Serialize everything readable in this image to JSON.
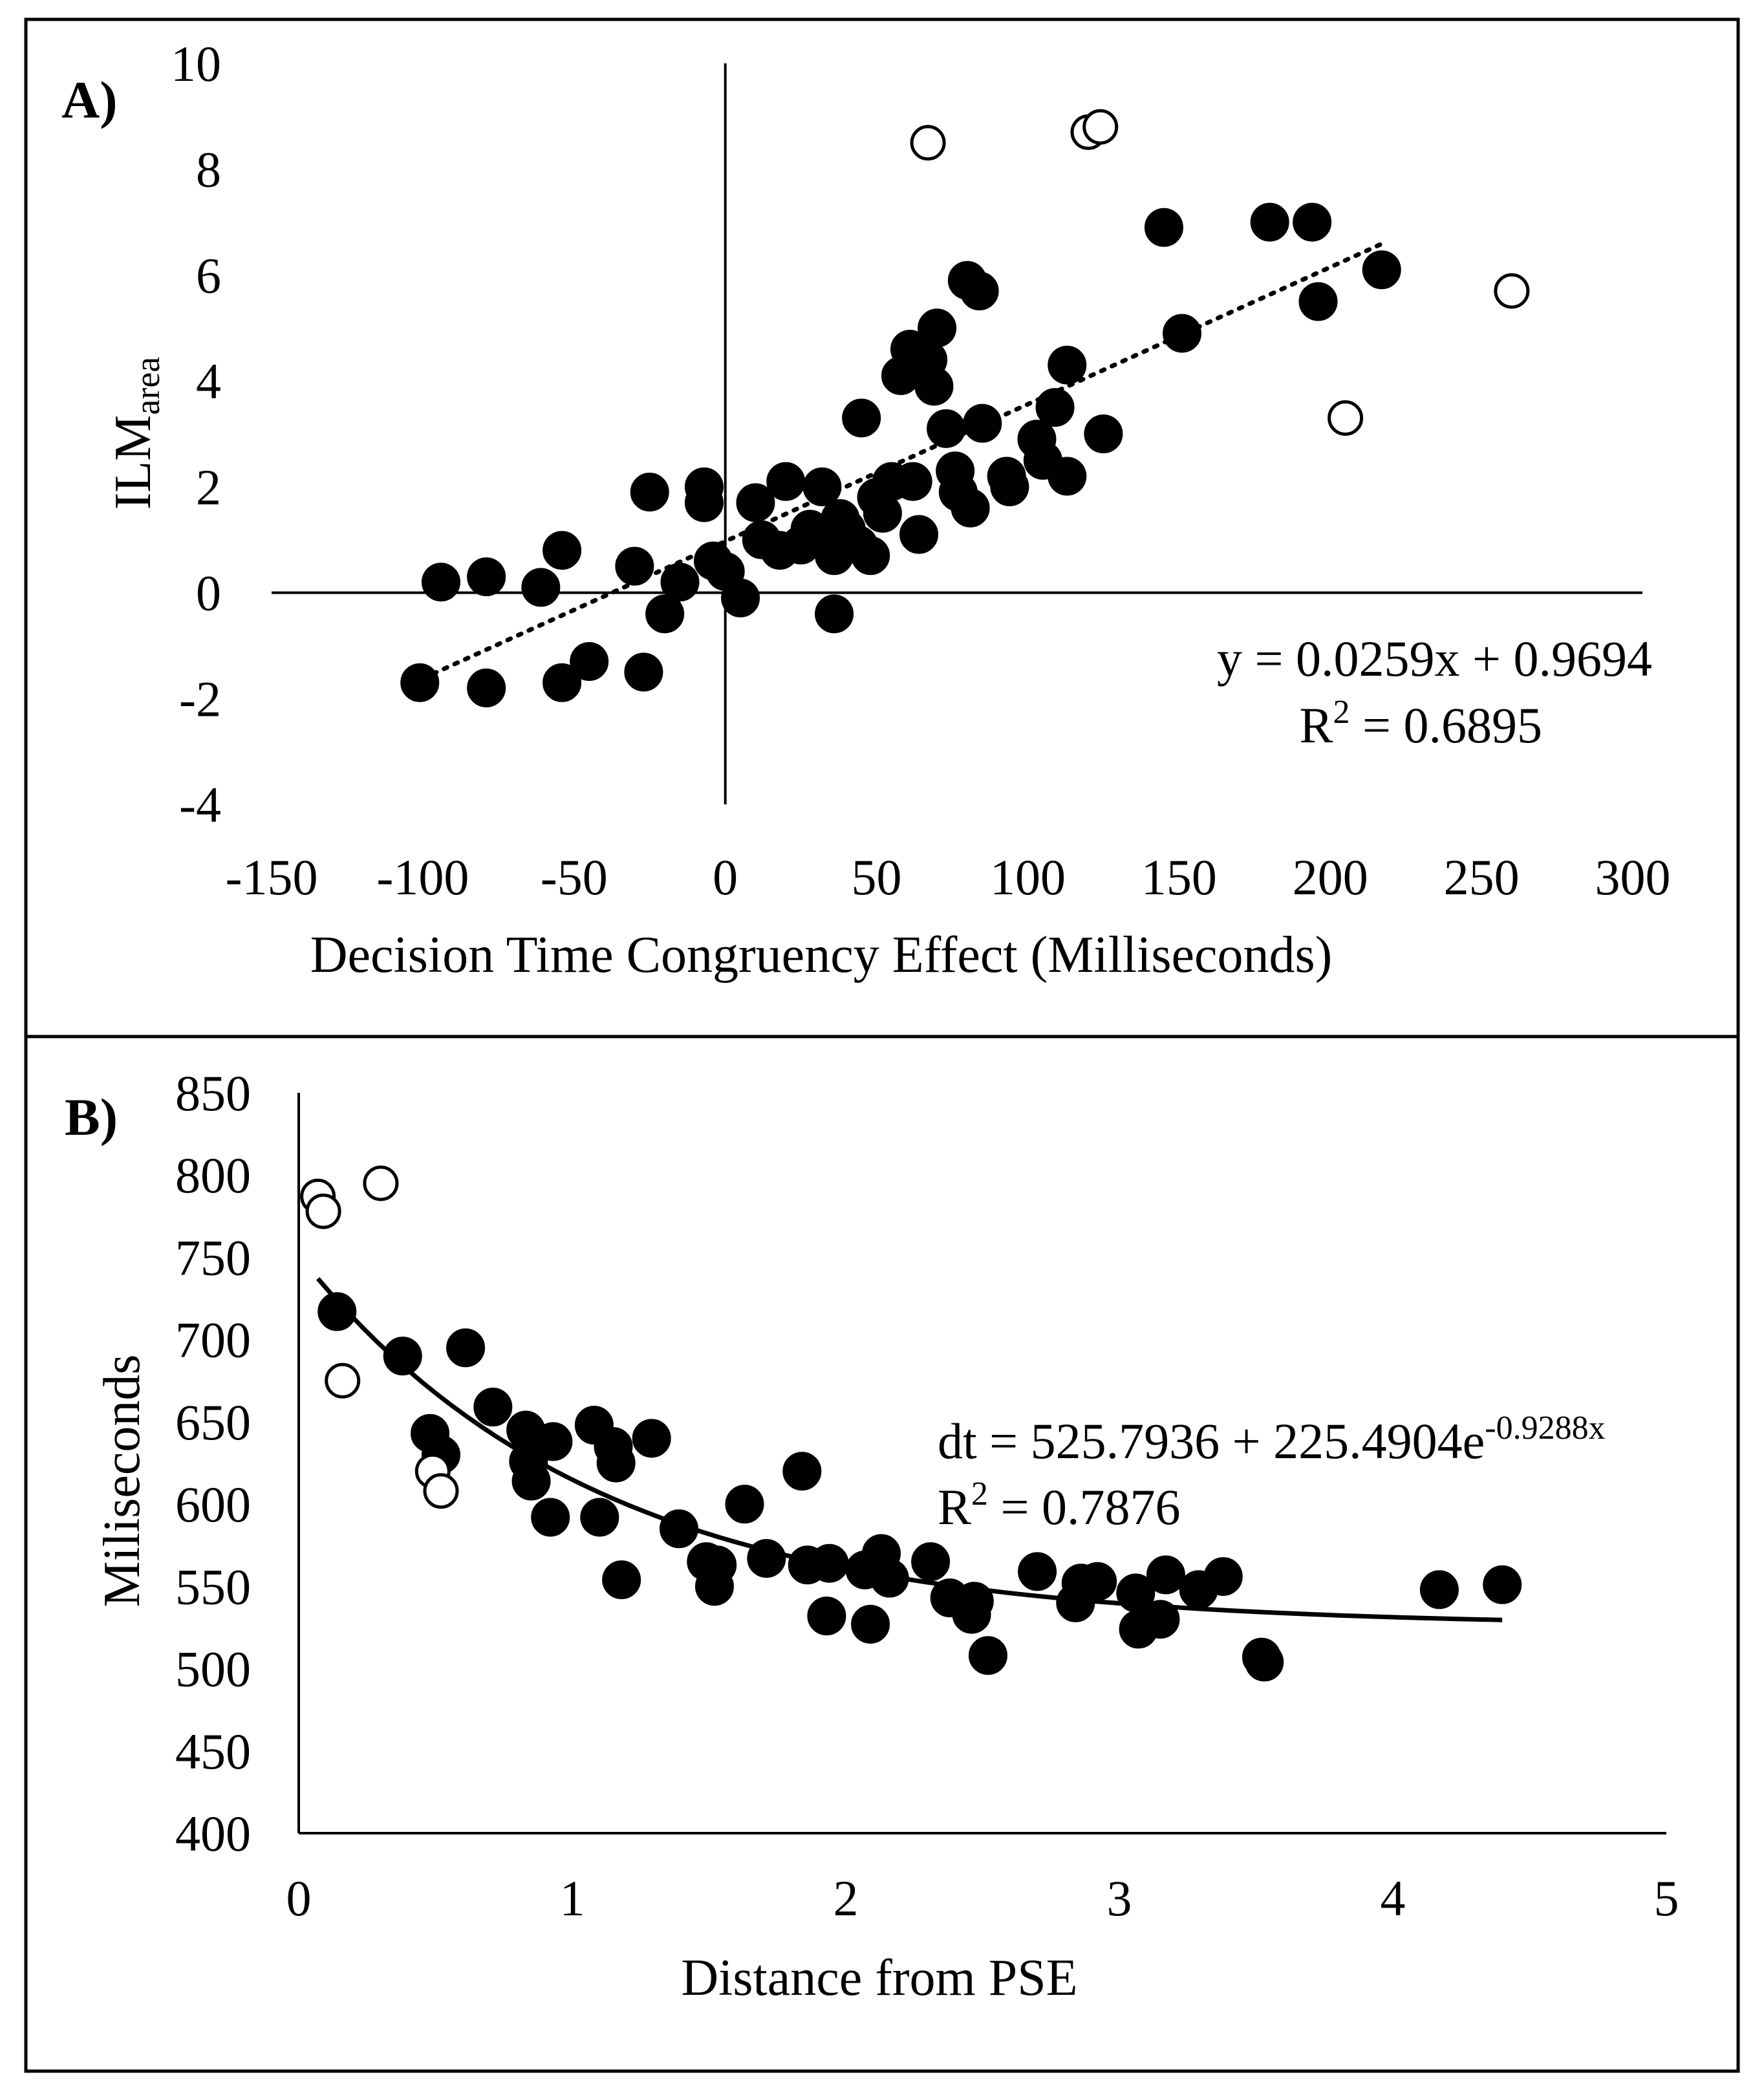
{
  "chart_data": [
    {
      "type": "scatter",
      "panel_label": "A)",
      "xlabel": "Decision Time  Congruency Effect (Milliseconds)",
      "ylabel": "ILM",
      "ylabel_sub": "area",
      "xlim": [
        -150,
        300
      ],
      "ylim": [
        -4,
        10
      ],
      "xticks": [
        "-150",
        "-100",
        "-50",
        "0",
        "50",
        "100",
        "150",
        "200",
        "250",
        "300"
      ],
      "yticks": [
        "-4",
        "-2",
        "0",
        "2",
        "4",
        "6",
        "8",
        "10"
      ],
      "trendline": {
        "type": "linear",
        "slope": 0.0259,
        "intercept": 0.9694,
        "x_range": [
          -100,
          217
        ],
        "style": "dotted"
      },
      "equation": "y = 0.0259x  + 0.9694",
      "r2_prefix": "R",
      "r2_sup": "2",
      "r2_value": " = 0.6895",
      "series": [
        {
          "name": "included",
          "marker": "filled-circle",
          "points": [
            [
              -101,
              -1.7
            ],
            [
              -94,
              0.2
            ],
            [
              -79,
              0.3
            ],
            [
              -79,
              -1.8
            ],
            [
              -61,
              0.1
            ],
            [
              -54,
              0.8
            ],
            [
              -54,
              -1.7
            ],
            [
              -45,
              -1.3
            ],
            [
              -30,
              0.5
            ],
            [
              -27,
              -1.5
            ],
            [
              -25,
              1.9
            ],
            [
              -20,
              -0.4
            ],
            [
              -15,
              0.2
            ],
            [
              -7,
              2.0
            ],
            [
              -7,
              1.7
            ],
            [
              -4,
              0.6
            ],
            [
              0,
              0.4
            ],
            [
              5,
              -0.1
            ],
            [
              10,
              1.7
            ],
            [
              12,
              1.0
            ],
            [
              18,
              0.8
            ],
            [
              20,
              2.1
            ],
            [
              25,
              0.9
            ],
            [
              28,
              1.2
            ],
            [
              32,
              2.0
            ],
            [
              34,
              1.0
            ],
            [
              36,
              0.7
            ],
            [
              36,
              -0.4
            ],
            [
              38,
              1.4
            ],
            [
              40,
              1.2
            ],
            [
              44,
              0.9
            ],
            [
              45,
              3.3
            ],
            [
              48,
              0.7
            ],
            [
              50,
              1.8
            ],
            [
              52,
              1.5
            ],
            [
              55,
              2.1
            ],
            [
              58,
              4.1
            ],
            [
              61,
              4.6
            ],
            [
              62,
              2.1
            ],
            [
              64,
              1.1
            ],
            [
              67,
              4.4
            ],
            [
              69,
              3.9
            ],
            [
              70,
              5.0
            ],
            [
              73,
              3.1
            ],
            [
              76,
              2.3
            ],
            [
              77,
              1.9
            ],
            [
              80,
              5.9
            ],
            [
              81,
              1.6
            ],
            [
              84,
              5.7
            ],
            [
              85,
              3.2
            ],
            [
              93,
              2.2
            ],
            [
              94,
              2.0
            ],
            [
              103,
              2.9
            ],
            [
              105,
              2.5
            ],
            [
              109,
              3.5
            ],
            [
              113,
              4.3
            ],
            [
              113,
              2.2
            ],
            [
              125,
              3.0
            ],
            [
              145,
              6.9
            ],
            [
              151,
              4.9
            ],
            [
              180,
              7.0
            ],
            [
              194,
              7.0
            ],
            [
              196,
              5.5
            ],
            [
              217,
              6.1
            ]
          ]
        },
        {
          "name": "excluded",
          "marker": "open-circle",
          "points": [
            [
              67,
              8.5
            ],
            [
              120,
              8.7
            ],
            [
              124,
              8.8
            ],
            [
              205,
              3.3
            ],
            [
              260,
              5.7
            ]
          ]
        }
      ]
    },
    {
      "type": "scatter",
      "panel_label": "B)",
      "xlabel": "Distance from PSE",
      "ylabel": "Miliseconds",
      "xlim": [
        0,
        5
      ],
      "ylim": [
        400,
        850
      ],
      "xticks": [
        "0",
        "1",
        "2",
        "3",
        "4",
        "5"
      ],
      "yticks": [
        "400",
        "450",
        "500",
        "550",
        "600",
        "650",
        "700",
        "750",
        "800",
        "850"
      ],
      "trendline": {
        "type": "exponential",
        "a": 525.7936,
        "b": 225.4904,
        "k": -0.9288,
        "x_range": [
          0.07,
          4.4
        ],
        "style": "solid"
      },
      "equation_main": "dt = 525.7936  + 225.4904e",
      "equation_sup": "-0.9288x",
      "r2_prefix": "R",
      "r2_sup": "2",
      "r2_value": " = 0.7876",
      "series": [
        {
          "name": "included",
          "marker": "filled-circle",
          "points": [
            [
              0.14,
              717
            ],
            [
              0.38,
              690
            ],
            [
              0.48,
              643
            ],
            [
              0.52,
              630
            ],
            [
              0.61,
              695
            ],
            [
              0.71,
              659
            ],
            [
              0.83,
              645
            ],
            [
              0.84,
              626
            ],
            [
              0.85,
              614
            ],
            [
              0.92,
              592
            ],
            [
              0.93,
              638
            ],
            [
              1.08,
              648
            ],
            [
              1.1,
              592
            ],
            [
              1.15,
              635
            ],
            [
              1.16,
              625
            ],
            [
              1.18,
              554
            ],
            [
              1.29,
              640
            ],
            [
              1.39,
              585
            ],
            [
              1.49,
              565
            ],
            [
              1.52,
              550
            ],
            [
              1.53,
              563
            ],
            [
              1.63,
              600
            ],
            [
              1.71,
              567
            ],
            [
              1.84,
              620
            ],
            [
              1.86,
              563
            ],
            [
              1.94,
              564
            ],
            [
              1.93,
              532
            ],
            [
              2.07,
              560
            ],
            [
              2.09,
              527
            ],
            [
              2.13,
              570
            ],
            [
              2.16,
              555
            ],
            [
              2.31,
              565
            ],
            [
              2.38,
              543
            ],
            [
              2.46,
              533
            ],
            [
              2.47,
              541
            ],
            [
              2.52,
              508
            ],
            [
              2.7,
              559
            ],
            [
              2.84,
              540
            ],
            [
              2.86,
              552
            ],
            [
              2.92,
              553
            ],
            [
              3.06,
              546
            ],
            [
              3.07,
              524
            ],
            [
              3.15,
              530
            ],
            [
              3.17,
              557
            ],
            [
              3.29,
              548
            ],
            [
              3.38,
              556
            ],
            [
              3.52,
              507
            ],
            [
              3.53,
              504
            ],
            [
              4.17,
              548
            ],
            [
              4.4,
              551
            ]
          ]
        },
        {
          "name": "excluded",
          "marker": "open-circle",
          "points": [
            [
              0.07,
              787
            ],
            [
              0.09,
              778
            ],
            [
              0.3,
              795
            ],
            [
              0.16,
              675
            ],
            [
              0.49,
              620
            ],
            [
              0.52,
              608
            ]
          ]
        }
      ]
    }
  ]
}
